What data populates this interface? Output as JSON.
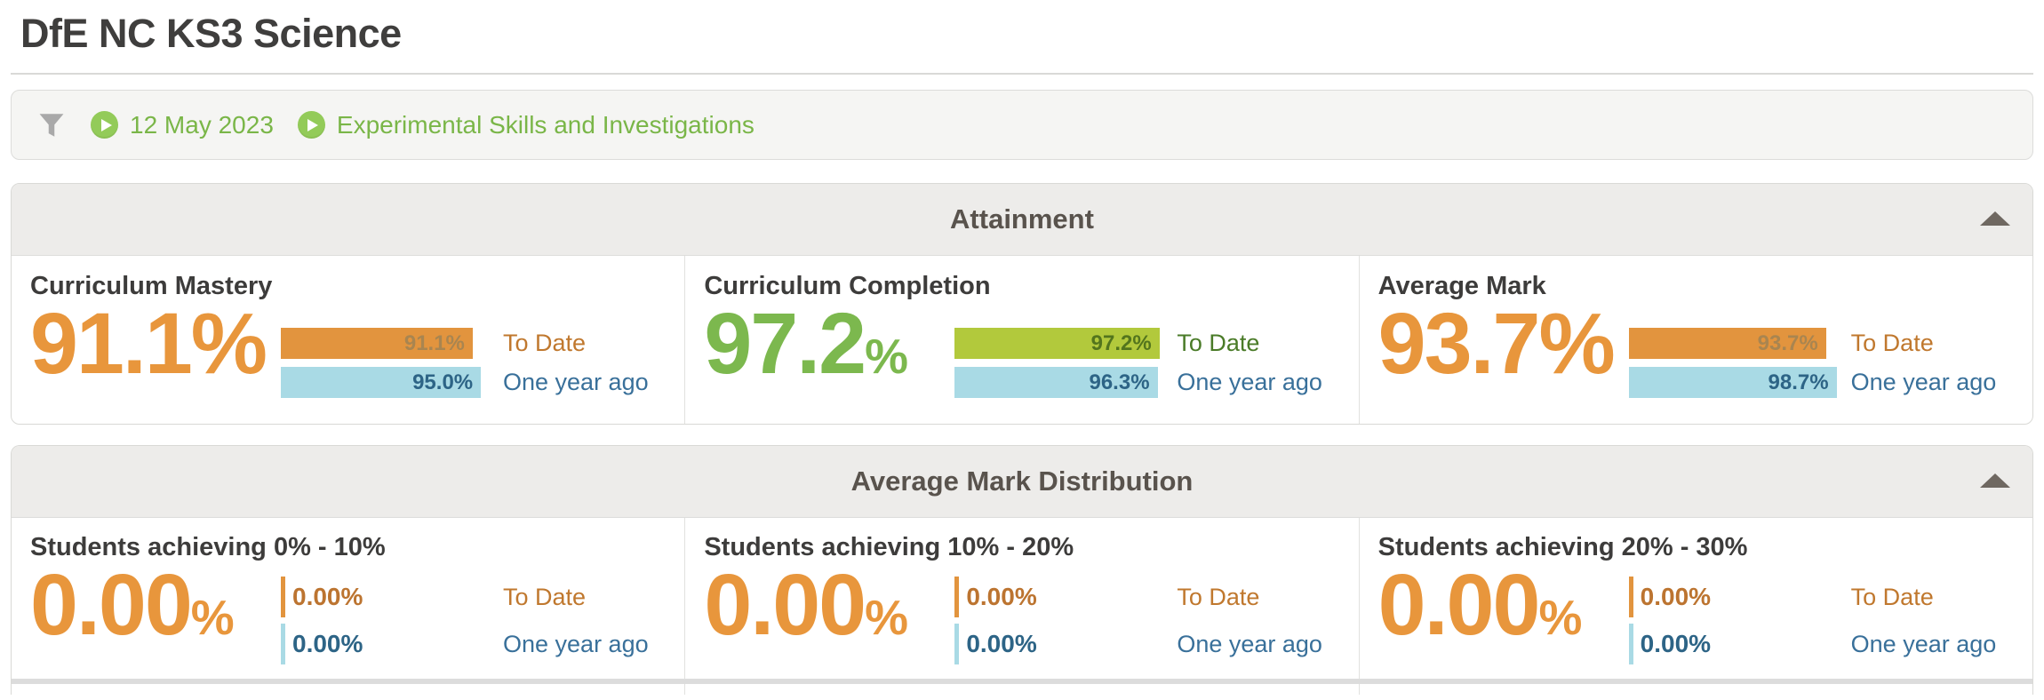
{
  "page_title": "DfE NC KS3 Science",
  "filter_bar": {
    "filter_icon": "funnel-icon",
    "chip_icon": "play-icon",
    "filters": [
      {
        "label": "12 May 2023"
      },
      {
        "label": "Experimental Skills and Investigations"
      }
    ]
  },
  "colors": {
    "accent_orange": "#e8963c",
    "accent_green": "#7cb84e",
    "bar_orange": "#e2943e",
    "bar_green": "#b2c93c",
    "bar_blue": "#a9dae5",
    "filter_text_green": "#7ab648",
    "to_date_orange": "#c0782e",
    "to_date_green": "#4a7b28",
    "one_year_blue": "#39709a",
    "heading_dark": "#3d3c3b",
    "section_header_bg": "#edecea"
  },
  "sections": [
    {
      "title": "Attainment",
      "collapse_icon": "triangle-up",
      "metrics": [
        {
          "name": "Curriculum Mastery",
          "value": "91.1",
          "suffix": "%",
          "bars": [
            {
              "value": "91.1%",
              "pct": 91.1,
              "label": "To Date"
            },
            {
              "value": "95.0%",
              "pct": 95.0,
              "label": "One year ago"
            }
          ]
        },
        {
          "name": "Curriculum Completion",
          "value": "97.2",
          "suffix": "%",
          "bars": [
            {
              "value": "97.2%",
              "pct": 97.2,
              "label": "To Date"
            },
            {
              "value": "96.3%",
              "pct": 96.3,
              "label": "One year ago"
            }
          ]
        },
        {
          "name": "Average Mark",
          "value": "93.7",
          "suffix": "%",
          "bars": [
            {
              "value": "93.7%",
              "pct": 93.7,
              "label": "To Date"
            },
            {
              "value": "98.7%",
              "pct": 98.7,
              "label": "One year ago"
            }
          ]
        }
      ]
    },
    {
      "title": "Average Mark Distribution",
      "collapse_icon": "triangle-up",
      "metrics": [
        {
          "name": "Students achieving 0% - 10%",
          "value": "0.00",
          "suffix": "%",
          "bars": [
            {
              "value": "0.00%",
              "pct": 0,
              "label": "To Date"
            },
            {
              "value": "0.00%",
              "pct": 0,
              "label": "One year ago"
            }
          ]
        },
        {
          "name": "Students achieving 10% - 20%",
          "value": "0.00",
          "suffix": "%",
          "bars": [
            {
              "value": "0.00%",
              "pct": 0,
              "label": "To Date"
            },
            {
              "value": "0.00%",
              "pct": 0,
              "label": "One year ago"
            }
          ]
        },
        {
          "name": "Students achieving 20% - 30%",
          "value": "0.00",
          "suffix": "%",
          "bars": [
            {
              "value": "0.00%",
              "pct": 0,
              "label": "To Date"
            },
            {
              "value": "0.00%",
              "pct": 0,
              "label": "One year ago"
            }
          ]
        }
      ]
    }
  ]
}
